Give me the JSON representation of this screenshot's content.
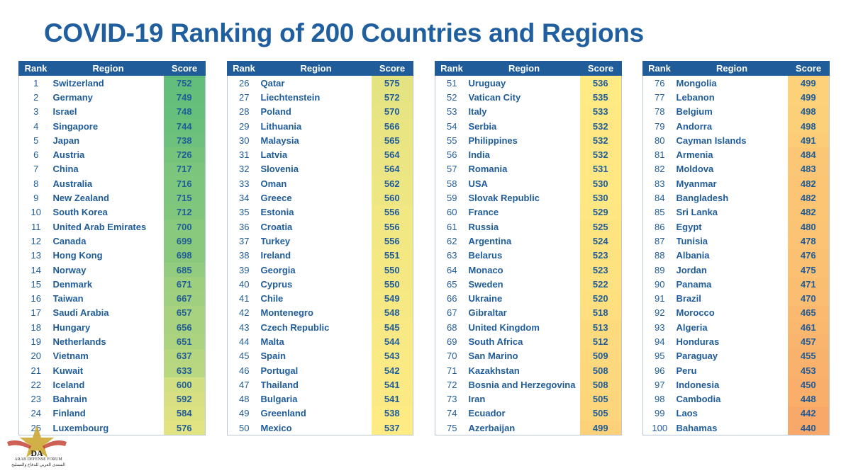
{
  "title": "COVID-19 Ranking of 200 Countries and Regions",
  "headers": {
    "rank": "Rank",
    "region": "Region",
    "score": "Score"
  },
  "colors": {
    "header": "#1f5c99",
    "text": "#1f5c99",
    "high": "#63be7b",
    "mid": "#ffeb84",
    "low": "#f8a868"
  },
  "watermark": {
    "letters": "DA",
    "line1": "ARAB DEFENSE FORUM",
    "line2": "المنتدى العربي للدفاع والتسليح"
  },
  "rows": [
    {
      "rank": "1",
      "region": "Switzerland",
      "score": 752
    },
    {
      "rank": "2",
      "region": "Germany",
      "score": 749
    },
    {
      "rank": "3",
      "region": "Israel",
      "score": 748
    },
    {
      "rank": "4",
      "region": "Singapore",
      "score": 744
    },
    {
      "rank": "5",
      "region": "Japan",
      "score": 738
    },
    {
      "rank": "6",
      "region": "Austria",
      "score": 726
    },
    {
      "rank": "7",
      "region": "China",
      "score": 717
    },
    {
      "rank": "8",
      "region": "Australia",
      "score": 716
    },
    {
      "rank": "9",
      "region": "New Zealand",
      "score": 715
    },
    {
      "rank": "10",
      "region": "South Korea",
      "score": 712
    },
    {
      "rank": "11",
      "region": "United Arab Emirates",
      "score": 700
    },
    {
      "rank": "12",
      "region": "Canada",
      "score": 699
    },
    {
      "rank": "13",
      "region": "Hong Kong",
      "score": 698
    },
    {
      "rank": "14",
      "region": "Norway",
      "score": 685
    },
    {
      "rank": "15",
      "region": "Denmark",
      "score": 671
    },
    {
      "rank": "16",
      "region": "Taiwan",
      "score": 667
    },
    {
      "rank": "17",
      "region": "Saudi Arabia",
      "score": 657
    },
    {
      "rank": "18",
      "region": "Hungary",
      "score": 656
    },
    {
      "rank": "19",
      "region": "Netherlands",
      "score": 651
    },
    {
      "rank": "20",
      "region": "Vietnam",
      "score": 637
    },
    {
      "rank": "21",
      "region": "Kuwait",
      "score": 633
    },
    {
      "rank": "22",
      "region": "Iceland",
      "score": 600
    },
    {
      "rank": "23",
      "region": "Bahrain",
      "score": 592
    },
    {
      "rank": "24",
      "region": "Finland",
      "score": 584
    },
    {
      "rank": "25",
      "region": "Luxembourg",
      "score": 576
    },
    {
      "rank": "26",
      "region": "Qatar",
      "score": 575
    },
    {
      "rank": "27",
      "region": "Liechtenstein",
      "score": 572
    },
    {
      "rank": "28",
      "region": "Poland",
      "score": 570
    },
    {
      "rank": "29",
      "region": "Lithuania",
      "score": 566
    },
    {
      "rank": "30",
      "region": "Malaysia",
      "score": 565
    },
    {
      "rank": "31",
      "region": "Latvia",
      "score": 564
    },
    {
      "rank": "32",
      "region": "Slovenia",
      "score": 564
    },
    {
      "rank": "33",
      "region": "Oman",
      "score": 562
    },
    {
      "rank": "34",
      "region": "Greece",
      "score": 560
    },
    {
      "rank": "35",
      "region": "Estonia",
      "score": 556
    },
    {
      "rank": "36",
      "region": "Croatia",
      "score": 556
    },
    {
      "rank": "37",
      "region": "Turkey",
      "score": 556
    },
    {
      "rank": "38",
      "region": "Ireland",
      "score": 551
    },
    {
      "rank": "39",
      "region": "Georgia",
      "score": 550
    },
    {
      "rank": "40",
      "region": "Cyprus",
      "score": 550
    },
    {
      "rank": "41",
      "region": "Chile",
      "score": 549
    },
    {
      "rank": "42",
      "region": "Montenegro",
      "score": 548
    },
    {
      "rank": "43",
      "region": "Czech Republic",
      "score": 545
    },
    {
      "rank": "44",
      "region": "Malta",
      "score": 544
    },
    {
      "rank": "45",
      "region": "Spain",
      "score": 543
    },
    {
      "rank": "46",
      "region": "Portugal",
      "score": 542
    },
    {
      "rank": "47",
      "region": "Thailand",
      "score": 541
    },
    {
      "rank": "48",
      "region": "Bulgaria",
      "score": 541
    },
    {
      "rank": "49",
      "region": "Greenland",
      "score": 538
    },
    {
      "rank": "50",
      "region": "Mexico",
      "score": 537
    },
    {
      "rank": "51",
      "region": "Uruguay",
      "score": 536
    },
    {
      "rank": "52",
      "region": "Vatican City",
      "score": 535
    },
    {
      "rank": "53",
      "region": "Italy",
      "score": 533
    },
    {
      "rank": "54",
      "region": "Serbia",
      "score": 532
    },
    {
      "rank": "55",
      "region": "Philippines",
      "score": 532
    },
    {
      "rank": "56",
      "region": "India",
      "score": 532
    },
    {
      "rank": "57",
      "region": "Romania",
      "score": 531
    },
    {
      "rank": "58",
      "region": "USA",
      "score": 530
    },
    {
      "rank": "59",
      "region": "Slovak Republic",
      "score": 530
    },
    {
      "rank": "60",
      "region": "France",
      "score": 529
    },
    {
      "rank": "61",
      "region": "Russia",
      "score": 525
    },
    {
      "rank": "62",
      "region": "Argentina",
      "score": 524
    },
    {
      "rank": "63",
      "region": "Belarus",
      "score": 523
    },
    {
      "rank": "64",
      "region": "Monaco",
      "score": 523
    },
    {
      "rank": "65",
      "region": "Sweden",
      "score": 522
    },
    {
      "rank": "66",
      "region": "Ukraine",
      "score": 520
    },
    {
      "rank": "67",
      "region": "Gibraltar",
      "score": 518
    },
    {
      "rank": "68",
      "region": "United Kingdom",
      "score": 513
    },
    {
      "rank": "69",
      "region": "South Africa",
      "score": 512
    },
    {
      "rank": "70",
      "region": "San Marino",
      "score": 509
    },
    {
      "rank": "71",
      "region": "Kazakhstan",
      "score": 508
    },
    {
      "rank": "72",
      "region": "Bosnia and Herzegovina",
      "score": 508
    },
    {
      "rank": "73",
      "region": "Iran",
      "score": 505
    },
    {
      "rank": "74",
      "region": "Ecuador",
      "score": 505
    },
    {
      "rank": "75",
      "region": "Azerbaijan",
      "score": 499
    },
    {
      "rank": "76",
      "region": "Mongolia",
      "score": 499
    },
    {
      "rank": "77",
      "region": "Lebanon",
      "score": 499
    },
    {
      "rank": "78",
      "region": "Belgium",
      "score": 498
    },
    {
      "rank": "79",
      "region": "Andorra",
      "score": 498
    },
    {
      "rank": "80",
      "region": "Cayman Islands",
      "score": 491
    },
    {
      "rank": "81",
      "region": "Armenia",
      "score": 484
    },
    {
      "rank": "82",
      "region": "Moldova",
      "score": 483
    },
    {
      "rank": "83",
      "region": "Myanmar",
      "score": 482
    },
    {
      "rank": "84",
      "region": "Bangladesh",
      "score": 482
    },
    {
      "rank": "85",
      "region": "Sri Lanka",
      "score": 482
    },
    {
      "rank": "86",
      "region": "Egypt",
      "score": 480
    },
    {
      "rank": "87",
      "region": "Tunisia",
      "score": 478
    },
    {
      "rank": "88",
      "region": "Albania",
      "score": 476
    },
    {
      "rank": "89",
      "region": "Jordan",
      "score": 475
    },
    {
      "rank": "90",
      "region": "Panama",
      "score": 471
    },
    {
      "rank": "91",
      "region": "Brazil",
      "score": 470
    },
    {
      "rank": "92",
      "region": "Morocco",
      "score": 465
    },
    {
      "rank": "93",
      "region": "Algeria",
      "score": 461
    },
    {
      "rank": "94",
      "region": "Honduras",
      "score": 457
    },
    {
      "rank": "95",
      "region": "Paraguay",
      "score": 455
    },
    {
      "rank": "96",
      "region": "Peru",
      "score": 453
    },
    {
      "rank": "97",
      "region": "Indonesia",
      "score": 450
    },
    {
      "rank": "98",
      "region": "Cambodia",
      "score": 448
    },
    {
      "rank": "99",
      "region": "Laos",
      "score": 442
    },
    {
      "rank": "100",
      "region": "Bahamas",
      "score": 440
    }
  ]
}
